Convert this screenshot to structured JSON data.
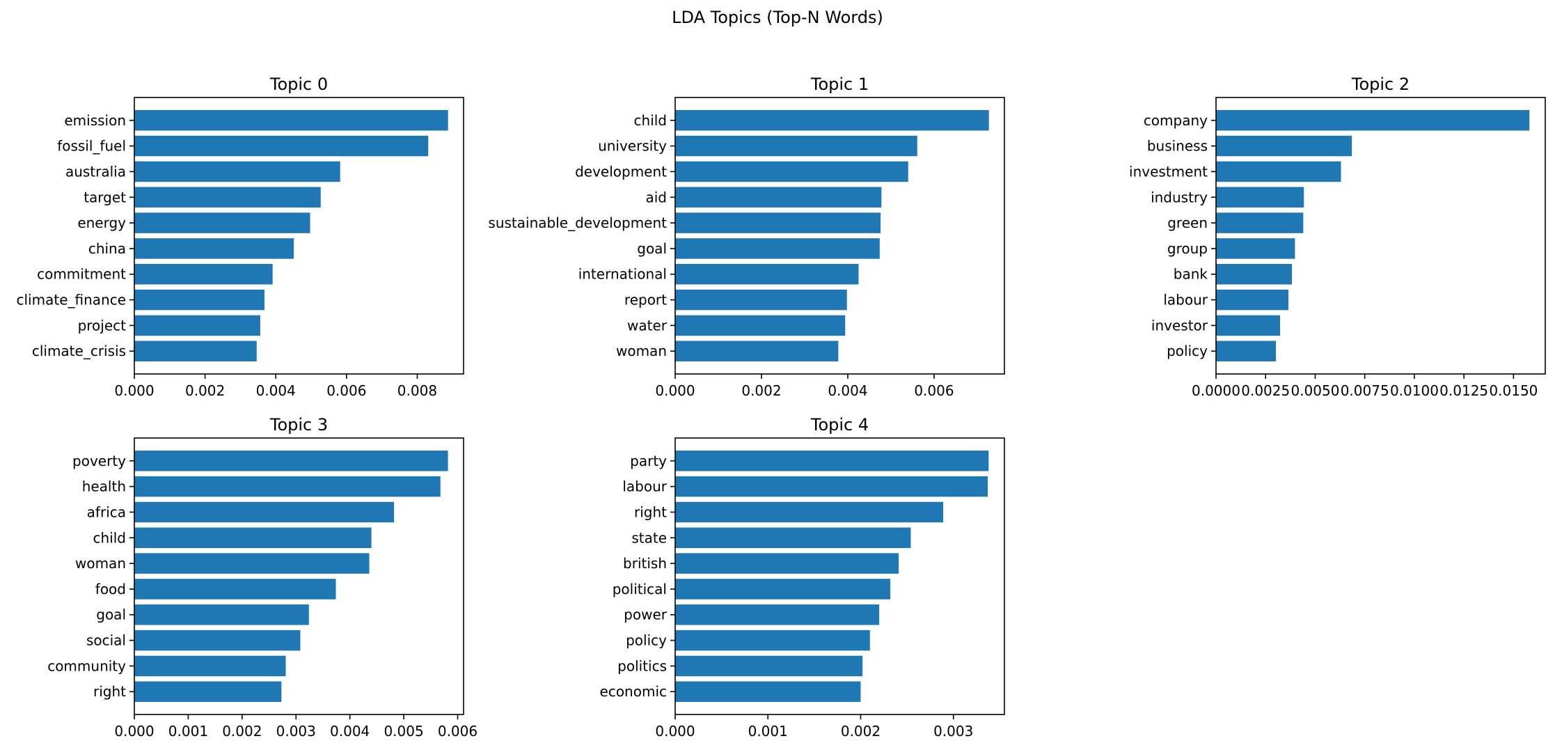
{
  "figure": {
    "title": "LDA Topics (Top-N Words)"
  },
  "colors": {
    "bar": "#1f77b4",
    "axis": "#000000",
    "background": "#ffffff"
  },
  "chart_data": [
    {
      "type": "bar",
      "orientation": "horizontal",
      "title": "Topic 0",
      "categories": [
        "emission",
        "fossil_fuel",
        "australia",
        "target",
        "energy",
        "china",
        "commitment",
        "climate_finance",
        "project",
        "climate_crisis"
      ],
      "values": [
        0.00887,
        0.00831,
        0.00582,
        0.00527,
        0.00497,
        0.00451,
        0.00391,
        0.00368,
        0.00356,
        0.00346
      ],
      "xlim": [
        0,
        0.00931
      ],
      "xticks": [
        0,
        0.002,
        0.004,
        0.006,
        0.008
      ],
      "xtick_labels": [
        "0.000",
        "0.002",
        "0.004",
        "0.006",
        "0.008"
      ],
      "xlabel": "",
      "ylabel": "",
      "grid": false
    },
    {
      "type": "bar",
      "orientation": "horizontal",
      "title": "Topic 1",
      "categories": [
        "child",
        "university",
        "development",
        "aid",
        "sustainable_development",
        "goal",
        "international",
        "report",
        "water",
        "woman"
      ],
      "values": [
        0.00727,
        0.00561,
        0.0054,
        0.00478,
        0.00476,
        0.00474,
        0.00425,
        0.00398,
        0.00394,
        0.00378
      ],
      "xlim": [
        0,
        0.00763
      ],
      "xticks": [
        0,
        0.002,
        0.004,
        0.006
      ],
      "xtick_labels": [
        "0.000",
        "0.002",
        "0.004",
        "0.006"
      ],
      "xlabel": "",
      "ylabel": "",
      "grid": false
    },
    {
      "type": "bar",
      "orientation": "horizontal",
      "title": "Topic 2",
      "categories": [
        "company",
        "business",
        "investment",
        "industry",
        "green",
        "group",
        "bank",
        "labour",
        "investor",
        "policy"
      ],
      "values": [
        0.0158,
        0.00685,
        0.0063,
        0.00443,
        0.0044,
        0.00398,
        0.00383,
        0.00365,
        0.00323,
        0.00302
      ],
      "xlim": [
        0,
        0.0166
      ],
      "xticks": [
        0,
        0.0025,
        0.005,
        0.0075,
        0.01,
        0.0125,
        0.015
      ],
      "xtick_labels": [
        "0.0000",
        "0.0025",
        "0.0050",
        "0.0075",
        "0.0100",
        "0.0125",
        "0.0150"
      ],
      "xlabel": "",
      "ylabel": "",
      "grid": false
    },
    {
      "type": "bar",
      "orientation": "horizontal",
      "title": "Topic 3",
      "categories": [
        "poverty",
        "health",
        "africa",
        "child",
        "woman",
        "food",
        "goal",
        "social",
        "community",
        "right"
      ],
      "values": [
        0.00582,
        0.00568,
        0.00482,
        0.0044,
        0.00436,
        0.00374,
        0.00324,
        0.00308,
        0.00281,
        0.00273
      ],
      "xlim": [
        0,
        0.00611
      ],
      "xticks": [
        0,
        0.001,
        0.002,
        0.003,
        0.004,
        0.005,
        0.006
      ],
      "xtick_labels": [
        "0.000",
        "0.001",
        "0.002",
        "0.003",
        "0.004",
        "0.005",
        "0.006"
      ],
      "xlabel": "",
      "ylabel": "",
      "grid": false
    },
    {
      "type": "bar",
      "orientation": "horizontal",
      "title": "Topic 4",
      "categories": [
        "party",
        "labour",
        "right",
        "state",
        "british",
        "political",
        "power",
        "policy",
        "politics",
        "economic"
      ],
      "values": [
        0.00338,
        0.00337,
        0.00289,
        0.00254,
        0.00241,
        0.00232,
        0.0022,
        0.0021,
        0.00202,
        0.002
      ],
      "xlim": [
        0,
        0.00355
      ],
      "xticks": [
        0,
        0.001,
        0.002,
        0.003
      ],
      "xtick_labels": [
        "0.000",
        "0.001",
        "0.002",
        "0.003"
      ],
      "xlabel": "",
      "ylabel": "",
      "grid": false
    }
  ]
}
